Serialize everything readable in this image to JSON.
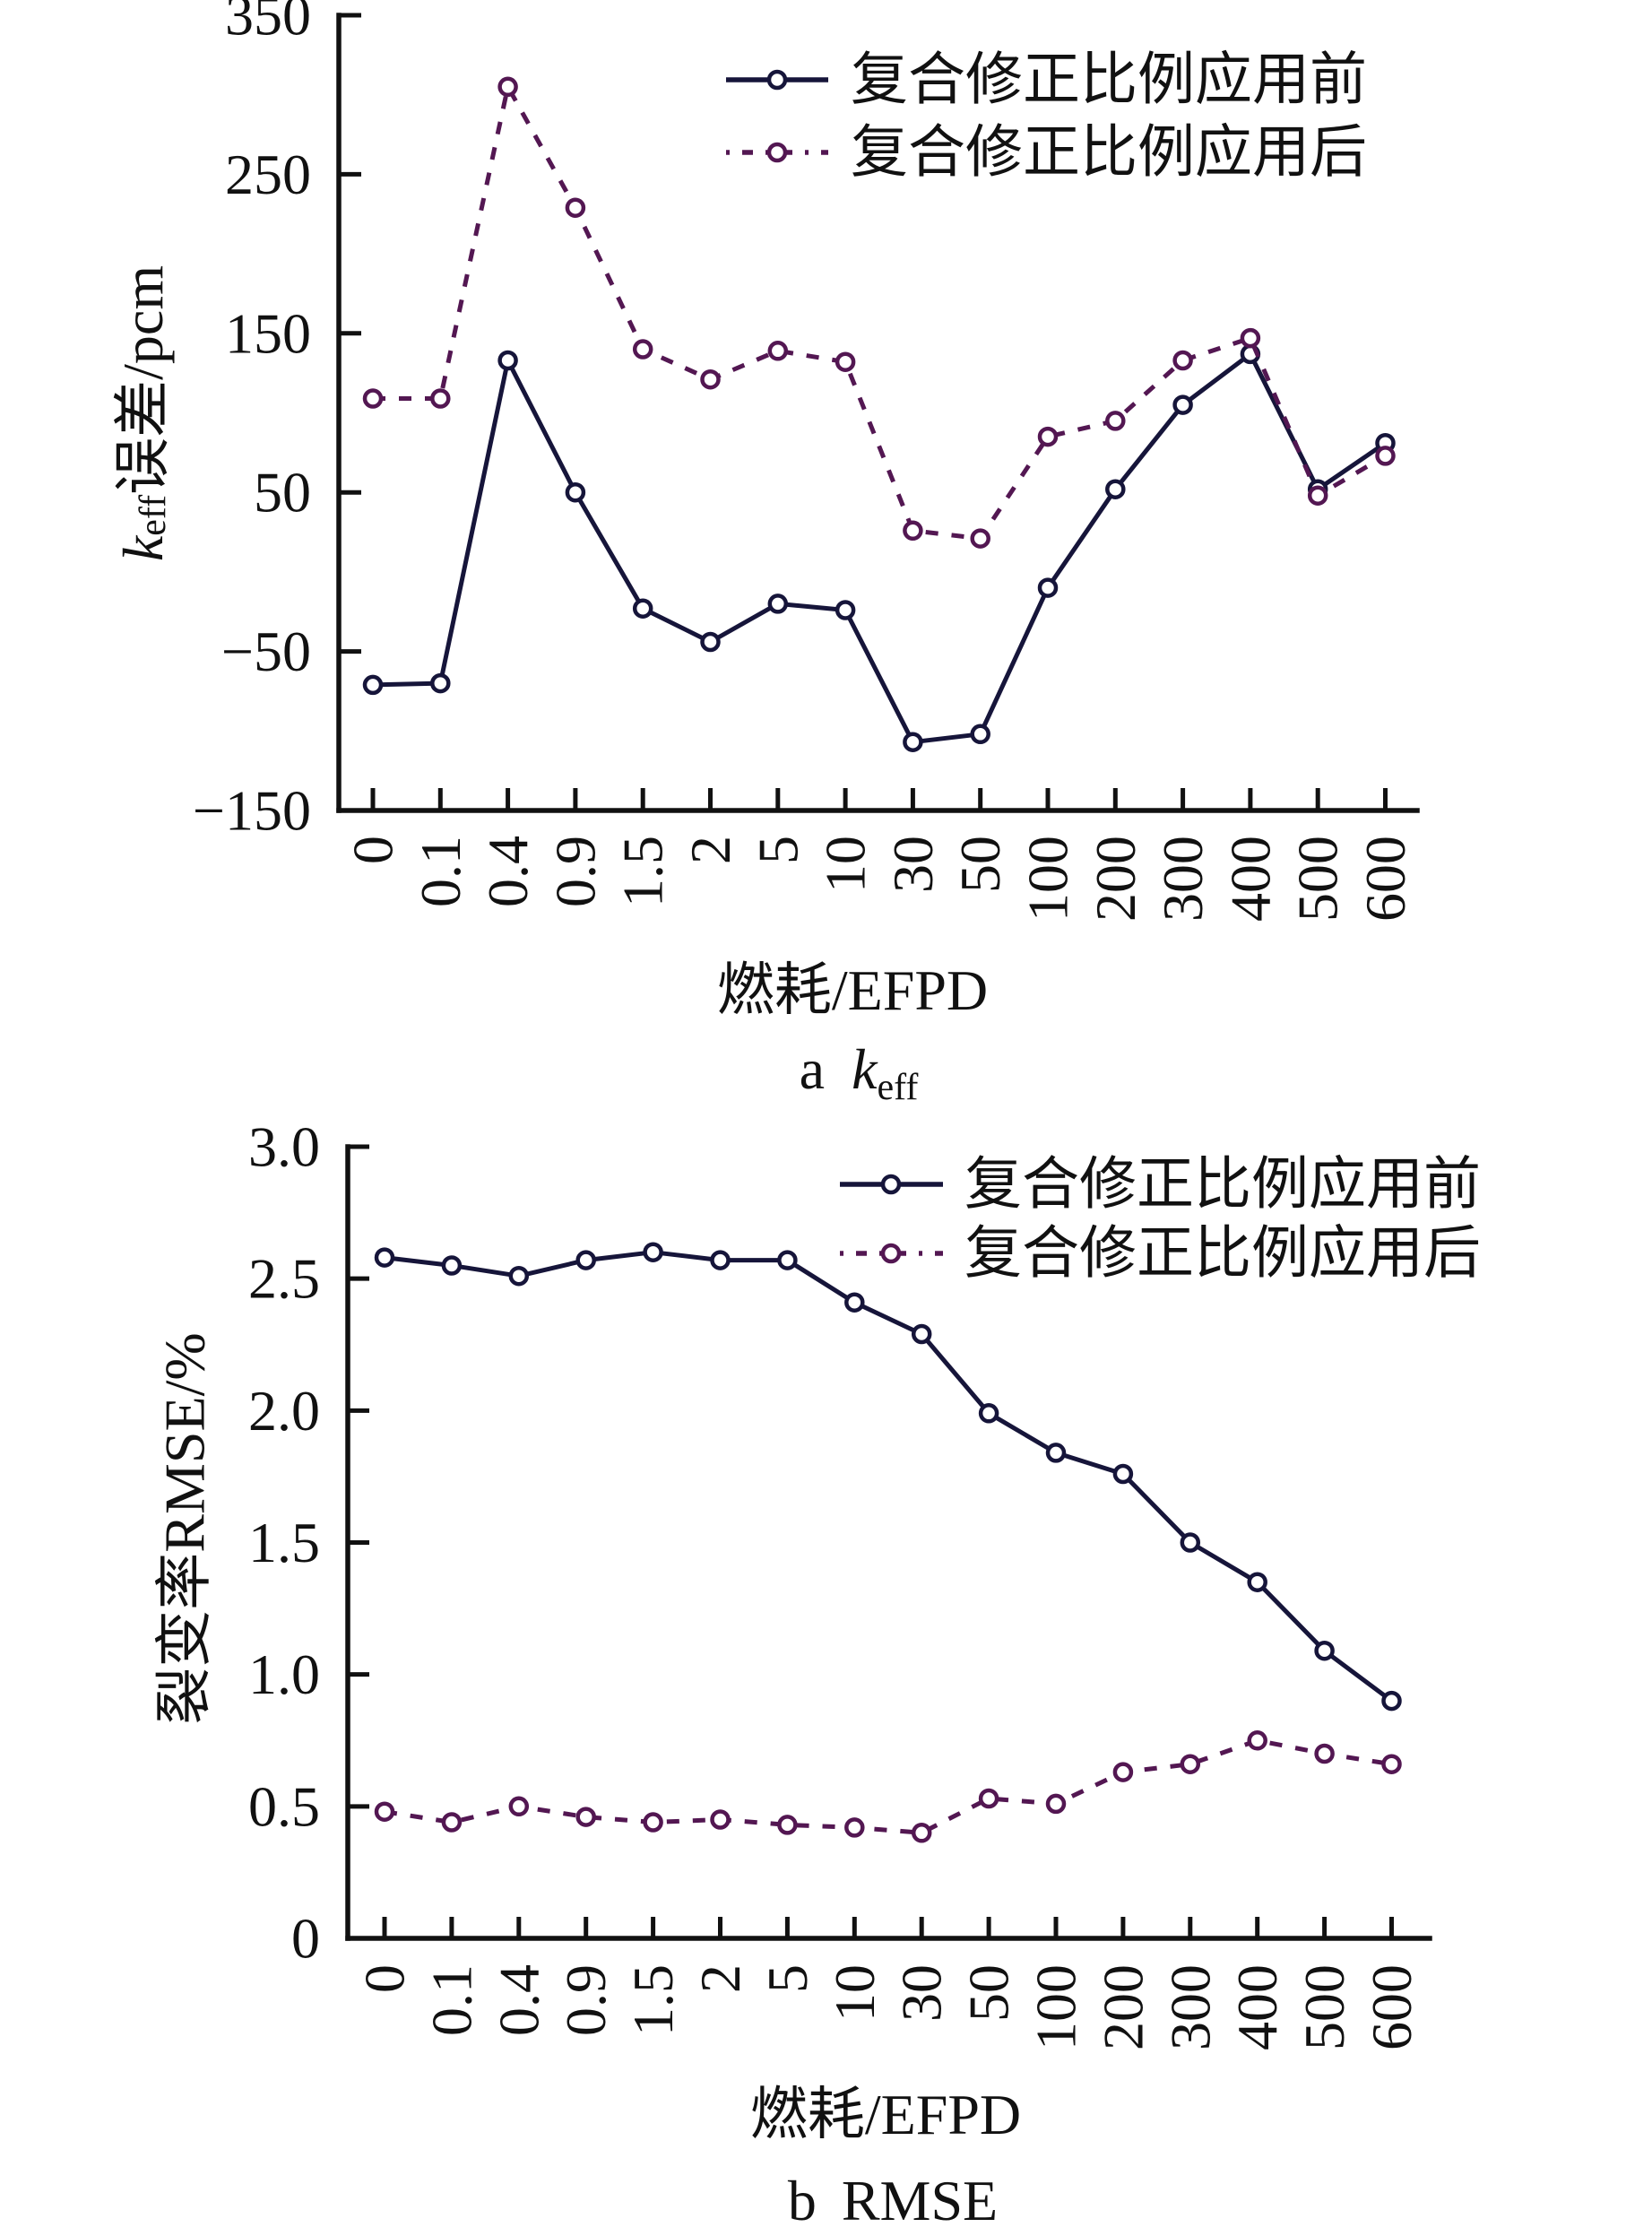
{
  "chart_data": [
    {
      "panel": "a",
      "type": "line",
      "title": "a keff",
      "caption": {
        "letter": "a",
        "symbol": "k",
        "subscript": "eff"
      },
      "xlabel": "燃耗/EFPD",
      "ylabel": "keff误差/pcm",
      "ylabel_parts": {
        "symbol": "k",
        "subscript": "eff",
        "suffix": "误差/pcm"
      },
      "x_scale": "categorical",
      "categories": [
        "0",
        "0.1",
        "0.4",
        "0.9",
        "1.5",
        "2",
        "5",
        "10",
        "30",
        "50",
        "100",
        "200",
        "300",
        "400",
        "500",
        "600"
      ],
      "ylim": [
        -150,
        350
      ],
      "yticks": [
        -150,
        -50,
        50,
        150,
        250,
        350
      ],
      "ytick_labels": [
        "−150",
        "−50",
        "50",
        "150",
        "250",
        "350"
      ],
      "grid": false,
      "legend_position": "top-right",
      "series": [
        {
          "name": "复合修正比例应用前",
          "line_style": "solid",
          "marker": "open-circle",
          "color": "#16153a",
          "values": [
            -71,
            -70,
            133,
            50,
            -23,
            -44,
            -20,
            -24,
            -107,
            -102,
            -10,
            52,
            105,
            137,
            52,
            81
          ]
        },
        {
          "name": "复合修正比例应用后",
          "line_style": "dashed",
          "marker": "open-circle",
          "color": "#531752",
          "values": [
            109,
            109,
            305,
            229,
            140,
            121,
            139,
            132,
            26,
            21,
            85,
            95,
            133,
            147,
            48,
            73
          ]
        }
      ]
    },
    {
      "panel": "b",
      "type": "line",
      "title": "b RMSE",
      "caption": {
        "letter": "b",
        "text": "RMSE"
      },
      "xlabel": "燃耗/EFPD",
      "ylabel": "裂变率RMSE/%",
      "x_scale": "categorical",
      "categories": [
        "0",
        "0.1",
        "0.4",
        "0.9",
        "1.5",
        "2",
        "5",
        "10",
        "30",
        "50",
        "100",
        "200",
        "300",
        "400",
        "500",
        "600"
      ],
      "ylim": [
        0,
        3.0
      ],
      "yticks": [
        0,
        0.5,
        1.0,
        1.5,
        2.0,
        2.5,
        3.0
      ],
      "ytick_labels": [
        "0",
        "0.5",
        "1.0",
        "1.5",
        "2.0",
        "2.5",
        "3.0"
      ],
      "grid": false,
      "legend_position": "top-right",
      "series": [
        {
          "name": "复合修正比例应用前",
          "line_style": "solid",
          "marker": "open-circle",
          "color": "#16153a",
          "values": [
            2.58,
            2.55,
            2.51,
            2.57,
            2.6,
            2.57,
            2.57,
            2.41,
            2.29,
            1.99,
            1.84,
            1.76,
            1.5,
            1.35,
            1.09,
            0.9
          ]
        },
        {
          "name": "复合修正比例应用后",
          "line_style": "dashed",
          "marker": "open-circle",
          "color": "#531752",
          "values": [
            0.48,
            0.44,
            0.5,
            0.46,
            0.44,
            0.45,
            0.43,
            0.42,
            0.4,
            0.53,
            0.51,
            0.63,
            0.66,
            0.75,
            0.7,
            0.66
          ]
        }
      ]
    }
  ]
}
